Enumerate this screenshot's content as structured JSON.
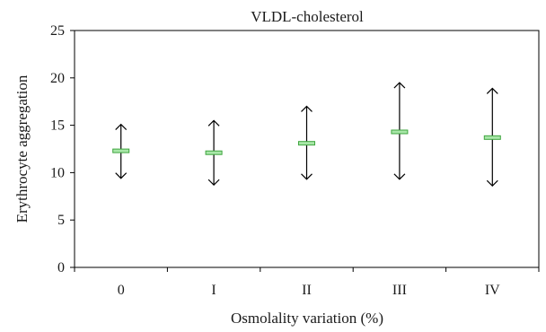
{
  "chart_data": {
    "type": "scatter",
    "title": "VLDL-cholesterol",
    "xlabel": "Osmolality variation (%)",
    "ylabel": "Erythrocyte aggregation",
    "categories": [
      "0",
      "I",
      "II",
      "III",
      "IV"
    ],
    "ylim": [
      0,
      25
    ],
    "yticks": [
      0,
      5,
      10,
      15,
      20,
      25
    ],
    "series": [
      {
        "mean": [
          12.3,
          12.1,
          13.1,
          14.3,
          13.7
        ],
        "upper": [
          15.1,
          15.5,
          17.0,
          19.5,
          18.9
        ],
        "lower": [
          9.4,
          8.7,
          9.3,
          9.3,
          8.6
        ]
      }
    ],
    "grid": false,
    "legend": "none",
    "colors": {
      "marker_fill": "#a8e6a8",
      "marker_stroke": "#3fa53f",
      "error_bar": "#000000",
      "axis": "#000000"
    }
  }
}
